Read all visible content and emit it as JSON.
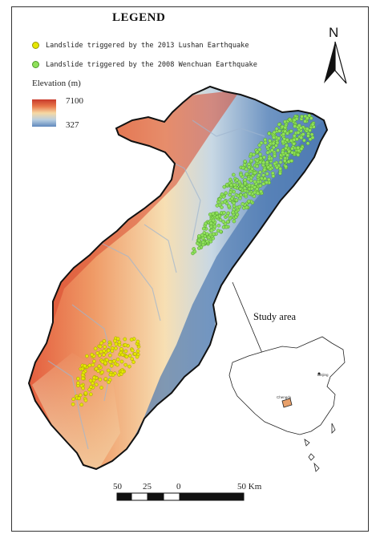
{
  "legend": {
    "title": "LEGEND",
    "items": [
      {
        "label": "Landslide triggered by the 2013 Lushan Earthquake",
        "color": "#e6e600"
      },
      {
        "label": "Landslide triggered by the 2008 Wenchuan Earthquake",
        "color": "#8fe05a"
      }
    ],
    "elevation_title": "Elevation  (m)",
    "elevation_max": "7100",
    "elevation_min": "327",
    "elevation_colors": [
      "#c8392b",
      "#e8774a",
      "#f6d9a4",
      "#b9cfe0",
      "#5f88bd"
    ]
  },
  "north_arrow": {
    "label": "N"
  },
  "inset": {
    "label": "Study area",
    "cities": [
      "Beijing",
      "Chengdu"
    ]
  },
  "scale_bar": {
    "labels": [
      "50",
      "25",
      "0",
      "50 Km"
    ]
  }
}
